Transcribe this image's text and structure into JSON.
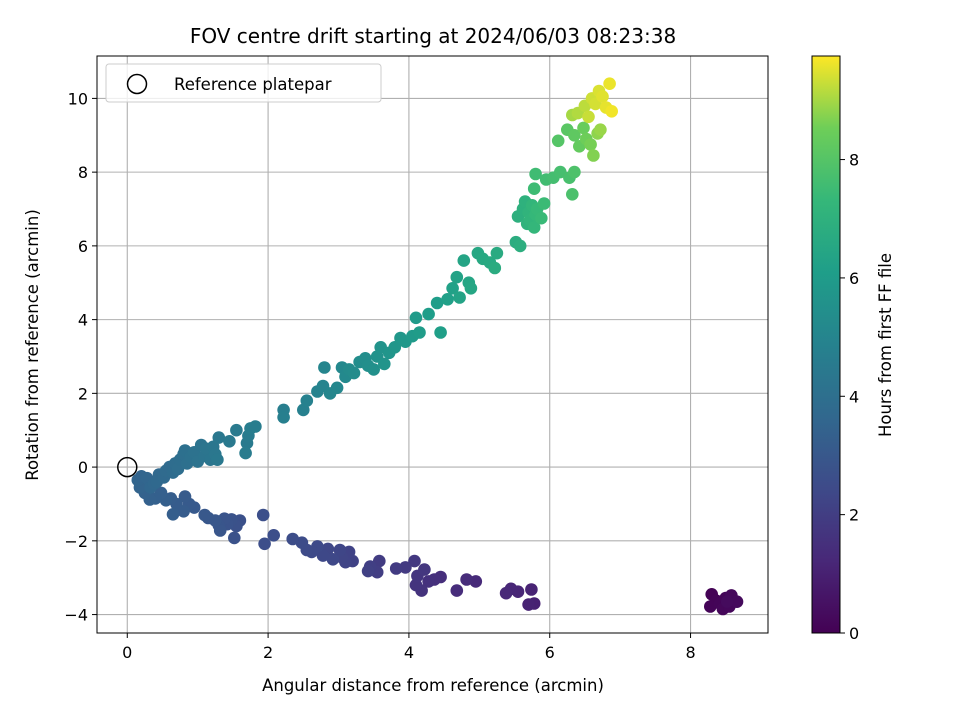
{
  "chart_data": {
    "type": "scatter",
    "title": "FOV centre drift starting at 2024/06/03 08:23:38",
    "xlabel": "Angular distance from reference (arcmin)",
    "ylabel": "Rotation from reference (arcmin)",
    "xlim": [
      -0.43,
      9.1
    ],
    "ylim": [
      -4.5,
      11.15
    ],
    "xticks": [
      0,
      2,
      4,
      6,
      8
    ],
    "yticks": [
      -4,
      -2,
      0,
      2,
      4,
      6,
      8,
      10
    ],
    "xtick_labels": [
      "0",
      "2",
      "4",
      "6",
      "8"
    ],
    "ytick_labels": [
      "−4",
      "−2",
      "0",
      "2",
      "4",
      "6",
      "8",
      "10"
    ],
    "grid": true,
    "legend": {
      "placement": "upper-left",
      "entries": [
        "Reference platepar"
      ]
    },
    "reference_point": {
      "x": 0,
      "y": 0,
      "marker": "open-circle",
      "label": "Reference platepar"
    },
    "colorbar": {
      "label": "Hours from first FF file",
      "colormap": "viridis",
      "range": [
        0,
        9.75
      ],
      "ticks": [
        0,
        2,
        4,
        6,
        8
      ],
      "tick_labels": [
        "0",
        "2",
        "4",
        "6",
        "8"
      ]
    },
    "points": [
      {
        "x": 8.3,
        "y": -3.45,
        "h": 0.05
      },
      {
        "x": 8.36,
        "y": -3.62,
        "h": 0.08
      },
      {
        "x": 8.28,
        "y": -3.78,
        "h": 0.1
      },
      {
        "x": 8.42,
        "y": -3.7,
        "h": 0.12
      },
      {
        "x": 8.5,
        "y": -3.55,
        "h": 0.15
      },
      {
        "x": 8.46,
        "y": -3.85,
        "h": 0.18
      },
      {
        "x": 8.55,
        "y": -3.78,
        "h": 0.2
      },
      {
        "x": 8.58,
        "y": -3.48,
        "h": 0.24
      },
      {
        "x": 8.66,
        "y": -3.65,
        "h": 0.27
      },
      {
        "x": 8.52,
        "y": -3.65,
        "h": 0.3
      },
      {
        "x": 5.78,
        "y": -3.7,
        "h": 1.0
      },
      {
        "x": 5.7,
        "y": -3.73,
        "h": 1.05
      },
      {
        "x": 5.74,
        "y": -3.32,
        "h": 1.1
      },
      {
        "x": 5.55,
        "y": -3.38,
        "h": 1.15
      },
      {
        "x": 5.45,
        "y": -3.3,
        "h": 1.2
      },
      {
        "x": 5.38,
        "y": -3.42,
        "h": 1.25
      },
      {
        "x": 4.95,
        "y": -3.1,
        "h": 1.3
      },
      {
        "x": 4.82,
        "y": -3.05,
        "h": 1.35
      },
      {
        "x": 4.68,
        "y": -3.35,
        "h": 1.4
      },
      {
        "x": 4.45,
        "y": -2.98,
        "h": 1.45
      },
      {
        "x": 4.36,
        "y": -3.05,
        "h": 1.5
      },
      {
        "x": 4.28,
        "y": -3.1,
        "h": 1.55
      },
      {
        "x": 4.18,
        "y": -3.35,
        "h": 1.6
      },
      {
        "x": 4.1,
        "y": -3.2,
        "h": 1.65
      },
      {
        "x": 4.12,
        "y": -2.95,
        "h": 1.7
      },
      {
        "x": 4.22,
        "y": -2.78,
        "h": 1.75
      },
      {
        "x": 4.08,
        "y": -2.55,
        "h": 1.8
      },
      {
        "x": 3.95,
        "y": -2.72,
        "h": 1.85
      },
      {
        "x": 3.82,
        "y": -2.75,
        "h": 1.9
      },
      {
        "x": 3.58,
        "y": -2.55,
        "h": 1.95
      },
      {
        "x": 3.55,
        "y": -2.85,
        "h": 2.0
      },
      {
        "x": 3.45,
        "y": -2.7,
        "h": 2.05
      },
      {
        "x": 3.42,
        "y": -2.82,
        "h": 2.1
      },
      {
        "x": 3.2,
        "y": -2.55,
        "h": 2.15
      },
      {
        "x": 3.15,
        "y": -2.3,
        "h": 2.2
      },
      {
        "x": 3.1,
        "y": -2.58,
        "h": 2.22
      },
      {
        "x": 3.05,
        "y": -2.45,
        "h": 2.25
      },
      {
        "x": 3.02,
        "y": -2.25,
        "h": 2.28
      },
      {
        "x": 2.85,
        "y": -2.22,
        "h": 2.32
      },
      {
        "x": 2.92,
        "y": -2.5,
        "h": 2.35
      },
      {
        "x": 2.78,
        "y": -2.4,
        "h": 2.38
      },
      {
        "x": 2.7,
        "y": -2.15,
        "h": 2.42
      },
      {
        "x": 2.62,
        "y": -2.3,
        "h": 2.45
      },
      {
        "x": 2.55,
        "y": -2.25,
        "h": 2.48
      },
      {
        "x": 2.48,
        "y": -2.05,
        "h": 2.52
      },
      {
        "x": 2.35,
        "y": -1.95,
        "h": 2.55
      },
      {
        "x": 2.08,
        "y": -1.85,
        "h": 2.58
      },
      {
        "x": 1.95,
        "y": -2.08,
        "h": 2.62
      },
      {
        "x": 1.93,
        "y": -1.3,
        "h": 2.65
      },
      {
        "x": 1.6,
        "y": -1.45,
        "h": 2.68
      },
      {
        "x": 1.55,
        "y": -1.6,
        "h": 2.72
      },
      {
        "x": 1.52,
        "y": -1.92,
        "h": 2.75
      },
      {
        "x": 1.48,
        "y": -1.42,
        "h": 2.78
      },
      {
        "x": 1.42,
        "y": -1.55,
        "h": 2.82
      },
      {
        "x": 1.38,
        "y": -1.4,
        "h": 2.85
      },
      {
        "x": 1.3,
        "y": -1.58,
        "h": 2.88
      },
      {
        "x": 1.32,
        "y": -1.72,
        "h": 2.92
      },
      {
        "x": 1.25,
        "y": -1.45,
        "h": 2.95
      },
      {
        "x": 1.15,
        "y": -1.38,
        "h": 2.98
      },
      {
        "x": 1.1,
        "y": -1.3,
        "h": 3.02
      },
      {
        "x": 0.95,
        "y": -1.1,
        "h": 3.05
      },
      {
        "x": 0.88,
        "y": -1.0,
        "h": 3.08
      },
      {
        "x": 0.82,
        "y": -0.8,
        "h": 3.12
      },
      {
        "x": 0.8,
        "y": -1.2,
        "h": 3.15
      },
      {
        "x": 0.7,
        "y": -1.0,
        "h": 3.18
      },
      {
        "x": 0.62,
        "y": -0.85,
        "h": 3.22
      },
      {
        "x": 0.65,
        "y": -1.28,
        "h": 3.25
      },
      {
        "x": 0.55,
        "y": -0.9,
        "h": 3.28
      },
      {
        "x": 0.48,
        "y": -0.7,
        "h": 3.32
      },
      {
        "x": 0.4,
        "y": -0.85,
        "h": 3.35
      },
      {
        "x": 0.32,
        "y": -0.88,
        "h": 3.38
      },
      {
        "x": 0.25,
        "y": -0.7,
        "h": 3.42
      },
      {
        "x": 0.22,
        "y": -0.48,
        "h": 3.45
      },
      {
        "x": 0.18,
        "y": -0.55,
        "h": 3.48
      },
      {
        "x": 0.15,
        "y": -0.35,
        "h": 3.52
      },
      {
        "x": 0.2,
        "y": -0.25,
        "h": 3.55
      },
      {
        "x": 0.28,
        "y": -0.3,
        "h": 3.58
      },
      {
        "x": 0.33,
        "y": -0.55,
        "h": 3.62
      },
      {
        "x": 0.38,
        "y": -0.45,
        "h": 3.65
      },
      {
        "x": 0.45,
        "y": -0.2,
        "h": 3.68
      },
      {
        "x": 0.42,
        "y": -0.4,
        "h": 3.72
      },
      {
        "x": 0.52,
        "y": -0.28,
        "h": 3.75
      },
      {
        "x": 0.55,
        "y": -0.1,
        "h": 3.78
      },
      {
        "x": 0.6,
        "y": 0.0,
        "h": 3.82
      },
      {
        "x": 0.65,
        "y": -0.15,
        "h": 3.85
      },
      {
        "x": 0.68,
        "y": 0.1,
        "h": 3.88
      },
      {
        "x": 0.72,
        "y": -0.05,
        "h": 3.92
      },
      {
        "x": 0.75,
        "y": 0.2,
        "h": 3.95
      },
      {
        "x": 0.8,
        "y": 0.35,
        "h": 3.98
      },
      {
        "x": 0.85,
        "y": 0.1,
        "h": 4.02
      },
      {
        "x": 0.82,
        "y": 0.45,
        "h": 4.05
      },
      {
        "x": 0.9,
        "y": 0.28,
        "h": 4.08
      },
      {
        "x": 0.95,
        "y": 0.4,
        "h": 4.12
      },
      {
        "x": 1.0,
        "y": 0.15,
        "h": 4.15
      },
      {
        "x": 1.05,
        "y": 0.6,
        "h": 4.18
      },
      {
        "x": 1.1,
        "y": 0.3,
        "h": 4.22
      },
      {
        "x": 1.12,
        "y": 0.5,
        "h": 4.25
      },
      {
        "x": 1.18,
        "y": 0.2,
        "h": 4.28
      },
      {
        "x": 1.22,
        "y": 0.55,
        "h": 4.32
      },
      {
        "x": 1.25,
        "y": 0.35,
        "h": 4.35
      },
      {
        "x": 1.3,
        "y": 0.8,
        "h": 4.38
      },
      {
        "x": 1.28,
        "y": 0.2,
        "h": 4.42
      },
      {
        "x": 1.45,
        "y": 0.7,
        "h": 4.45
      },
      {
        "x": 1.55,
        "y": 1.0,
        "h": 4.48
      },
      {
        "x": 1.7,
        "y": 0.65,
        "h": 4.52
      },
      {
        "x": 1.72,
        "y": 0.85,
        "h": 4.55
      },
      {
        "x": 1.68,
        "y": 0.38,
        "h": 4.58
      },
      {
        "x": 1.75,
        "y": 1.05,
        "h": 4.62
      },
      {
        "x": 1.82,
        "y": 1.1,
        "h": 4.65
      },
      {
        "x": 2.22,
        "y": 1.55,
        "h": 4.7
      },
      {
        "x": 2.22,
        "y": 1.35,
        "h": 4.75
      },
      {
        "x": 2.5,
        "y": 1.55,
        "h": 4.8
      },
      {
        "x": 2.55,
        "y": 1.8,
        "h": 4.85
      },
      {
        "x": 2.7,
        "y": 2.05,
        "h": 4.9
      },
      {
        "x": 2.78,
        "y": 2.2,
        "h": 4.95
      },
      {
        "x": 2.8,
        "y": 2.7,
        "h": 5.0
      },
      {
        "x": 2.88,
        "y": 2.0,
        "h": 5.05
      },
      {
        "x": 2.98,
        "y": 2.15,
        "h": 5.1
      },
      {
        "x": 3.05,
        "y": 2.7,
        "h": 5.15
      },
      {
        "x": 3.1,
        "y": 2.45,
        "h": 5.2
      },
      {
        "x": 3.15,
        "y": 2.65,
        "h": 5.25
      },
      {
        "x": 3.22,
        "y": 2.55,
        "h": 5.3
      },
      {
        "x": 3.3,
        "y": 2.85,
        "h": 5.35
      },
      {
        "x": 3.38,
        "y": 2.95,
        "h": 5.4
      },
      {
        "x": 3.42,
        "y": 2.75,
        "h": 5.45
      },
      {
        "x": 3.5,
        "y": 2.65,
        "h": 5.5
      },
      {
        "x": 3.55,
        "y": 3.0,
        "h": 5.55
      },
      {
        "x": 3.6,
        "y": 3.25,
        "h": 5.6
      },
      {
        "x": 3.65,
        "y": 2.8,
        "h": 5.65
      },
      {
        "x": 3.72,
        "y": 3.1,
        "h": 5.7
      },
      {
        "x": 3.8,
        "y": 3.25,
        "h": 5.75
      },
      {
        "x": 3.88,
        "y": 3.5,
        "h": 5.8
      },
      {
        "x": 3.95,
        "y": 3.4,
        "h": 5.85
      },
      {
        "x": 4.05,
        "y": 3.55,
        "h": 5.9
      },
      {
        "x": 4.1,
        "y": 4.05,
        "h": 5.95
      },
      {
        "x": 4.15,
        "y": 3.65,
        "h": 6.0
      },
      {
        "x": 4.28,
        "y": 4.15,
        "h": 6.05
      },
      {
        "x": 4.4,
        "y": 4.45,
        "h": 6.1
      },
      {
        "x": 4.45,
        "y": 3.65,
        "h": 6.15
      },
      {
        "x": 4.55,
        "y": 4.55,
        "h": 6.2
      },
      {
        "x": 4.62,
        "y": 4.85,
        "h": 6.25
      },
      {
        "x": 4.68,
        "y": 5.15,
        "h": 6.3
      },
      {
        "x": 4.72,
        "y": 4.6,
        "h": 6.35
      },
      {
        "x": 4.78,
        "y": 5.6,
        "h": 6.4
      },
      {
        "x": 4.85,
        "y": 5.0,
        "h": 6.45
      },
      {
        "x": 4.88,
        "y": 4.85,
        "h": 6.5
      },
      {
        "x": 4.98,
        "y": 5.8,
        "h": 6.55
      },
      {
        "x": 5.05,
        "y": 5.65,
        "h": 6.6
      },
      {
        "x": 5.15,
        "y": 5.55,
        "h": 6.65
      },
      {
        "x": 5.25,
        "y": 5.8,
        "h": 6.7
      },
      {
        "x": 5.22,
        "y": 5.4,
        "h": 6.75
      },
      {
        "x": 5.52,
        "y": 6.1,
        "h": 6.8
      },
      {
        "x": 5.58,
        "y": 6.0,
        "h": 6.85
      },
      {
        "x": 5.55,
        "y": 6.8,
        "h": 6.9
      },
      {
        "x": 5.62,
        "y": 7.0,
        "h": 6.95
      },
      {
        "x": 5.65,
        "y": 7.2,
        "h": 7.0
      },
      {
        "x": 5.68,
        "y": 6.6,
        "h": 7.05
      },
      {
        "x": 5.7,
        "y": 6.9,
        "h": 7.1
      },
      {
        "x": 5.72,
        "y": 6.7,
        "h": 7.15
      },
      {
        "x": 5.75,
        "y": 7.1,
        "h": 7.2
      },
      {
        "x": 5.78,
        "y": 6.5,
        "h": 7.25
      },
      {
        "x": 5.8,
        "y": 6.85,
        "h": 7.3
      },
      {
        "x": 5.82,
        "y": 7.0,
        "h": 7.35
      },
      {
        "x": 5.88,
        "y": 6.75,
        "h": 7.4
      },
      {
        "x": 5.92,
        "y": 7.15,
        "h": 7.45
      },
      {
        "x": 5.78,
        "y": 7.55,
        "h": 7.5
      },
      {
        "x": 5.8,
        "y": 7.95,
        "h": 7.55
      },
      {
        "x": 5.95,
        "y": 7.8,
        "h": 7.6
      },
      {
        "x": 6.05,
        "y": 7.85,
        "h": 7.65
      },
      {
        "x": 6.15,
        "y": 8.0,
        "h": 7.7
      },
      {
        "x": 6.28,
        "y": 7.85,
        "h": 7.75
      },
      {
        "x": 6.32,
        "y": 7.4,
        "h": 7.8
      },
      {
        "x": 6.35,
        "y": 8.0,
        "h": 7.85
      },
      {
        "x": 6.12,
        "y": 8.85,
        "h": 8.0
      },
      {
        "x": 6.25,
        "y": 9.15,
        "h": 8.1
      },
      {
        "x": 6.35,
        "y": 9.0,
        "h": 8.2
      },
      {
        "x": 6.42,
        "y": 8.7,
        "h": 8.3
      },
      {
        "x": 6.48,
        "y": 9.2,
        "h": 8.4
      },
      {
        "x": 6.52,
        "y": 8.9,
        "h": 8.5
      },
      {
        "x": 6.58,
        "y": 8.75,
        "h": 8.6
      },
      {
        "x": 6.62,
        "y": 8.45,
        "h": 8.7
      },
      {
        "x": 6.68,
        "y": 9.05,
        "h": 8.8
      },
      {
        "x": 6.72,
        "y": 9.15,
        "h": 8.9
      },
      {
        "x": 6.32,
        "y": 9.55,
        "h": 9.0
      },
      {
        "x": 6.4,
        "y": 9.6,
        "h": 9.1
      },
      {
        "x": 6.5,
        "y": 9.8,
        "h": 9.2
      },
      {
        "x": 6.55,
        "y": 9.5,
        "h": 9.3
      },
      {
        "x": 6.6,
        "y": 10.0,
        "h": 9.35
      },
      {
        "x": 6.65,
        "y": 9.85,
        "h": 9.4
      },
      {
        "x": 6.7,
        "y": 10.2,
        "h": 9.45
      },
      {
        "x": 6.75,
        "y": 10.05,
        "h": 9.5
      },
      {
        "x": 6.8,
        "y": 9.75,
        "h": 9.55
      },
      {
        "x": 6.85,
        "y": 10.4,
        "h": 9.6
      },
      {
        "x": 6.88,
        "y": 9.65,
        "h": 9.65
      }
    ]
  }
}
